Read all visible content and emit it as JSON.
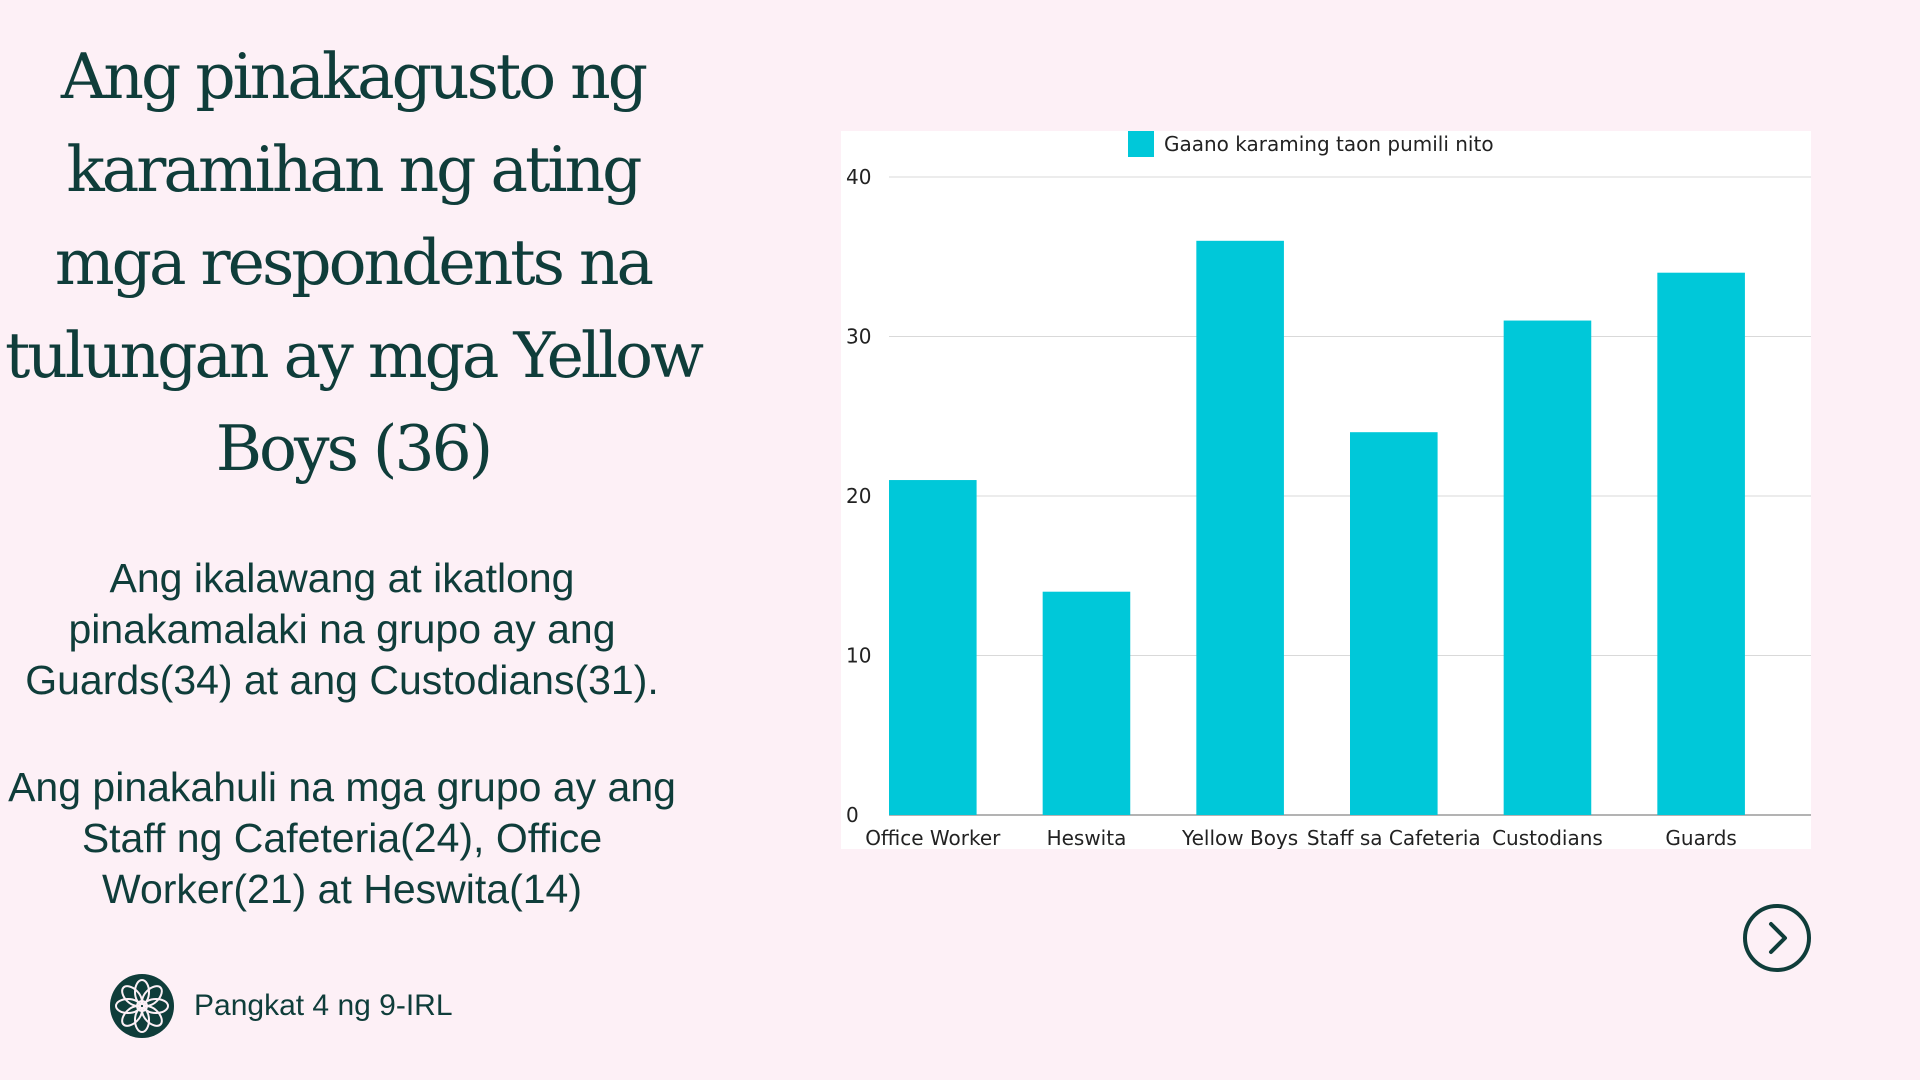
{
  "heading": {
    "lines": [
      "Ang pinakagusto ng",
      "karamihan ng ating",
      "mga respondents na",
      "tulungan ay mga Yellow",
      "Boys (36)"
    ]
  },
  "paragraph_1": {
    "lines": [
      "Ang ikalawang  at ikatlong",
      "pinakamalaki na grupo ay ang",
      "Guards(34) at ang Custodians(31)."
    ]
  },
  "paragraph_2": {
    "lines": [
      "Ang pinakahuli na mga grupo ay ang",
      "Staff ng Cafeteria(24), Office",
      "Worker(21) at Heswita(14)"
    ]
  },
  "footer": {
    "label": "Pangkat 4 ng 9-IRL",
    "logo_icon": "flower-mandala-icon"
  },
  "next_button": {
    "icon": "chevron-right-icon"
  },
  "colors": {
    "background": "#fdf0f6",
    "text": "#0f3d3a",
    "bar": "#00c8d9",
    "grid": "#d9d9d9"
  },
  "chart_data": {
    "type": "bar",
    "categories": [
      "Office Worker",
      "Heswita",
      "Yellow Boys",
      "Staff sa Cafeteria",
      "Custodians",
      "Guards"
    ],
    "series": [
      {
        "name": "Gaano karaming taon pumili nito",
        "values": [
          21,
          14,
          36,
          24,
          31,
          34
        ]
      }
    ],
    "ylim": [
      0,
      40
    ],
    "yticks": [
      0,
      10,
      20,
      30,
      40
    ],
    "grid": true,
    "legend": "top-center"
  }
}
